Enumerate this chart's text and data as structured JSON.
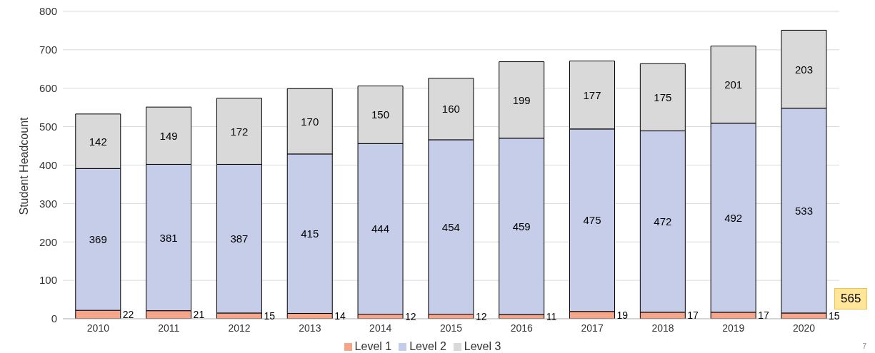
{
  "chart_data": {
    "type": "bar",
    "ylabel": "Student Headcount",
    "categories": [
      "2010",
      "2011",
      "2012",
      "2013",
      "2014",
      "2015",
      "2016",
      "2017",
      "2018",
      "2019",
      "2020"
    ],
    "stacked": true,
    "data_labels": true,
    "grid": "y",
    "legend": "bottom",
    "ylim": [
      0,
      800
    ],
    "yticks": [
      0,
      100,
      200,
      300,
      400,
      500,
      600,
      700,
      800
    ],
    "series": [
      {
        "name": "Level 1",
        "color": "#f4a58a",
        "values": [
          22,
          21,
          15,
          14,
          12,
          12,
          11,
          19,
          17,
          17,
          15
        ]
      },
      {
        "name": "Level 2",
        "color": "#c5cde8",
        "values": [
          369,
          381,
          387,
          415,
          444,
          454,
          459,
          475,
          472,
          492,
          533
        ]
      },
      {
        "name": "Level 3",
        "color": "#d9d9d9",
        "values": [
          142,
          149,
          172,
          170,
          150,
          160,
          199,
          177,
          175,
          201,
          203
        ]
      }
    ],
    "annotations": [
      "565",
      "7"
    ]
  }
}
